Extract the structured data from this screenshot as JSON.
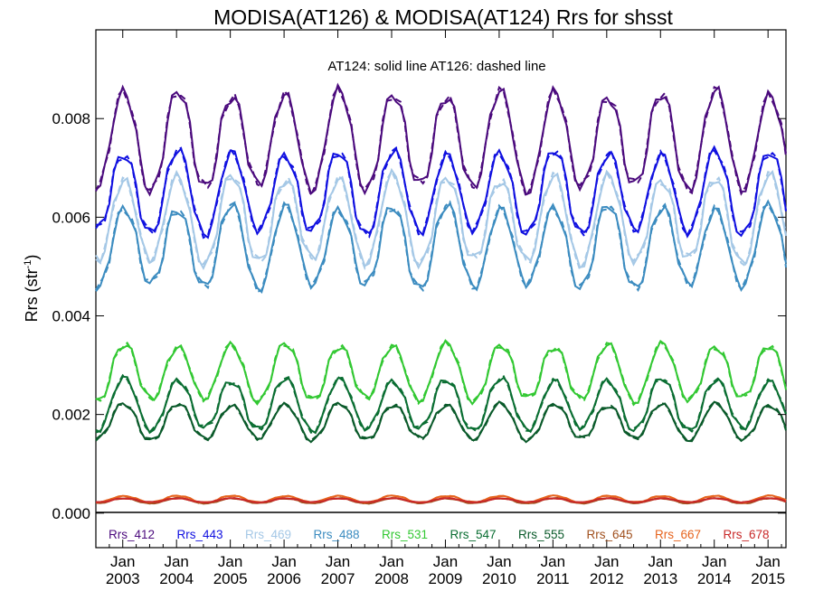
{
  "chart_data": {
    "type": "line",
    "title": "MODISA(AT126) & MODISA(AT124)  Rrs for shsst",
    "annotation": "AT124: solid line   AT126: dashed line",
    "xlabel": "",
    "ylabel": "Rrs (str",
    "ylabel_sup": "-1",
    "ylabel_end": ")",
    "x_range": [
      "2002-07",
      "2015-05"
    ],
    "ylim": [
      -0.0007,
      0.0098
    ],
    "y_ticks": [
      0.0,
      0.002,
      0.004,
      0.006,
      0.008
    ],
    "y_tick_labels": [
      "0.000",
      "0.002",
      "0.004",
      "0.006",
      "0.008"
    ],
    "x_ticks": [
      {
        "month": "Jan",
        "year": "2003"
      },
      {
        "month": "Jan",
        "year": "2004"
      },
      {
        "month": "Jan",
        "year": "2005"
      },
      {
        "month": "Jan",
        "year": "2006"
      },
      {
        "month": "Jan",
        "year": "2007"
      },
      {
        "month": "Jan",
        "year": "2008"
      },
      {
        "month": "Jan",
        "year": "2009"
      },
      {
        "month": "Jan",
        "year": "2010"
      },
      {
        "month": "Jan",
        "year": "2011"
      },
      {
        "month": "Jan",
        "year": "2012"
      },
      {
        "month": "Jan",
        "year": "2013"
      },
      {
        "month": "Jan",
        "year": "2014"
      },
      {
        "month": "Jan",
        "year": "2015"
      }
    ],
    "grid": false,
    "legend_position": "bottom",
    "line_styles": {
      "AT124": "solid",
      "AT126": "dashed"
    },
    "series": [
      {
        "name": "Rrs_412",
        "color": "#4b0a7d",
        "peak": 0.0085,
        "trough": 0.0066
      },
      {
        "name": "Rrs_443",
        "color": "#1010e0",
        "peak": 0.0073,
        "trough": 0.0057
      },
      {
        "name": "Rrs_469",
        "color": "#a5c8e6",
        "peak": 0.0068,
        "trough": 0.0051
      },
      {
        "name": "Rrs_488",
        "color": "#3c8cc0",
        "peak": 0.0062,
        "trough": 0.0046
      },
      {
        "name": "Rrs_531",
        "color": "#32c832",
        "peak": 0.0034,
        "trough": 0.0023
      },
      {
        "name": "Rrs_547",
        "color": "#0a6e32",
        "peak": 0.0027,
        "trough": 0.0017
      },
      {
        "name": "Rrs_555",
        "color": "#0a5a2a",
        "peak": 0.0022,
        "trough": 0.0015
      },
      {
        "name": "Rrs_645",
        "color": "#a0501e",
        "peak": 0.0003,
        "trough": 0.0002
      },
      {
        "name": "Rrs_667",
        "color": "#e6641e",
        "peak": 0.00035,
        "trough": 0.00022
      },
      {
        "name": "Rrs_678",
        "color": "#c82828",
        "peak": 0.0003,
        "trough": 0.00022
      }
    ]
  }
}
